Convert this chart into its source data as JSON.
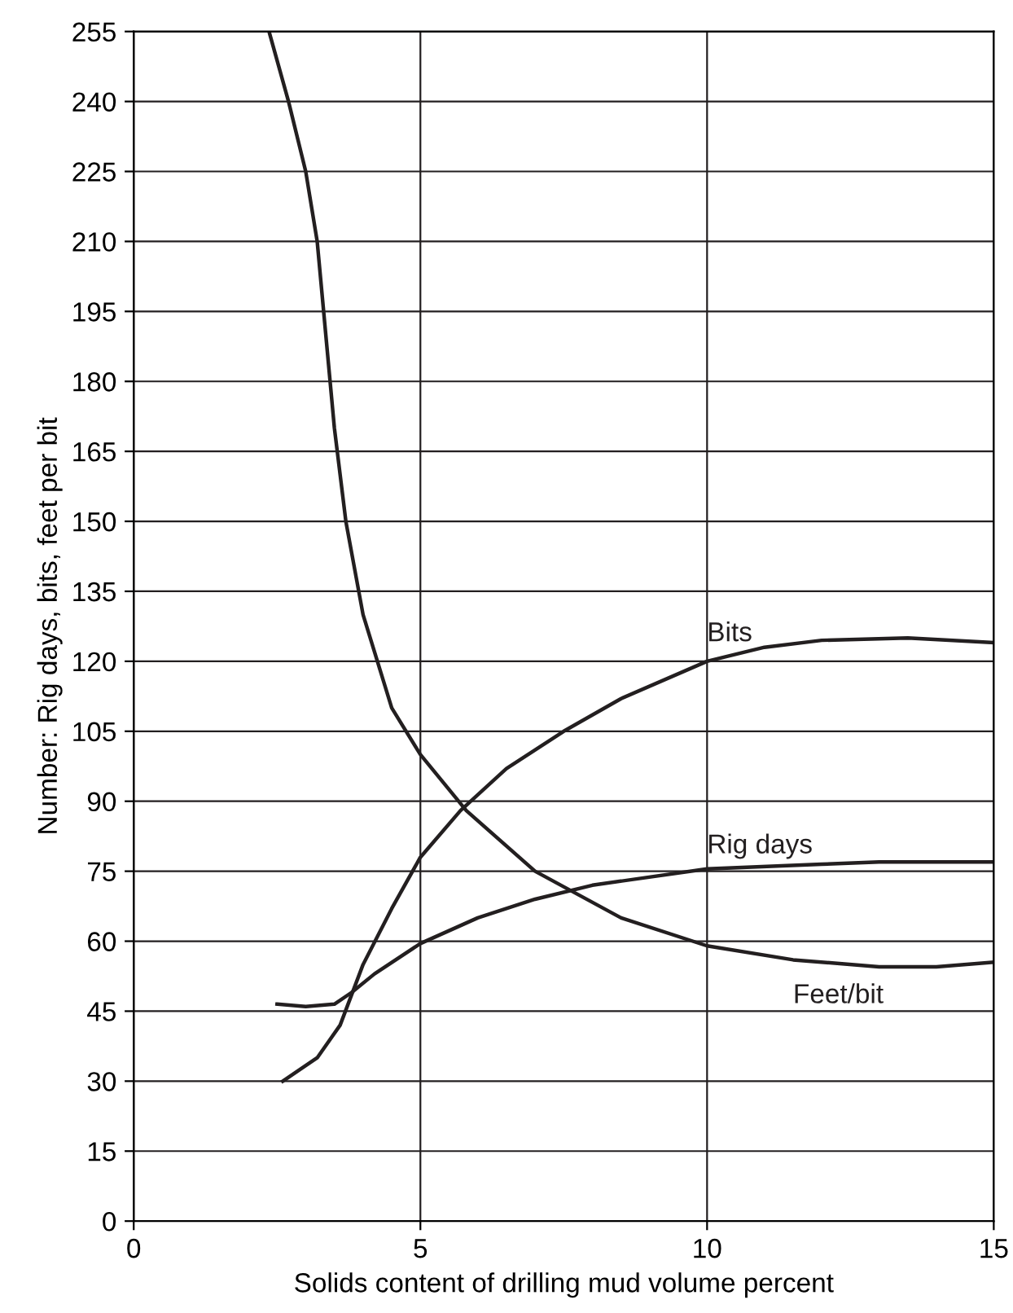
{
  "chart_data": {
    "type": "line",
    "xlabel": "Solids content of drilling mud volume percent",
    "ylabel": "Number: Rig days, bits, feet per bit",
    "xlim": [
      0,
      15
    ],
    "xticks": [
      0,
      5,
      10,
      15
    ],
    "ylim": [
      0,
      255
    ],
    "yticks": [
      0,
      15,
      30,
      45,
      60,
      75,
      90,
      105,
      120,
      135,
      150,
      165,
      180,
      195,
      210,
      225,
      240,
      255
    ],
    "grid": true,
    "marker": "none",
    "line_style": "solid",
    "series": [
      {
        "name": "Bits",
        "color": "#231f20",
        "x": [
          2.6,
          3.2,
          3.6,
          4.0,
          4.5,
          5,
          5.7,
          6.5,
          7.5,
          8.5,
          10,
          11,
          12,
          13.5,
          15
        ],
        "values": [
          30,
          35,
          42,
          55,
          67,
          78,
          88,
          97,
          105,
          112,
          120,
          123,
          124.5,
          125,
          124
        ]
      },
      {
        "name": "Rig days",
        "color": "#231f20",
        "x": [
          2.5,
          3.0,
          3.5,
          3.8,
          4.2,
          5,
          6,
          7,
          8,
          10,
          12,
          13,
          15
        ],
        "values": [
          46.5,
          46,
          46.5,
          49,
          53,
          59.5,
          65,
          69,
          72,
          75.5,
          76.5,
          77,
          77
        ]
      },
      {
        "name": "Feet/bit",
        "color": "#231f20",
        "x": [
          2.36,
          2.7,
          3.0,
          3.2,
          3.35,
          3.5,
          3.7,
          4.0,
          4.5,
          5.0,
          5.8,
          7,
          8.5,
          10,
          11.5,
          13,
          14,
          15
        ],
        "values": [
          255,
          240,
          225,
          210,
          190,
          170,
          150,
          130,
          110,
          100,
          88,
          75,
          65,
          59,
          56,
          54.5,
          54.5,
          55.5
        ]
      }
    ]
  }
}
